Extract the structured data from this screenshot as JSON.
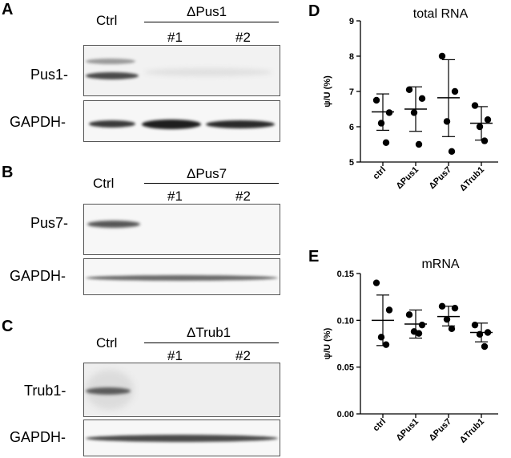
{
  "panels": {
    "A": {
      "letter": "A",
      "ctrl": "Ctrl",
      "group": "ΔPus1",
      "lane1": "#1",
      "lane2": "#2",
      "row1": "Pus1-",
      "row2": "GAPDH-"
    },
    "B": {
      "letter": "B",
      "ctrl": "Ctrl",
      "group": "ΔPus7",
      "lane1": "#1",
      "lane2": "#2",
      "row1": "Pus7-",
      "row2": "GAPDH-"
    },
    "C": {
      "letter": "C",
      "ctrl": "Ctrl",
      "group": "ΔTrub1",
      "lane1": "#1",
      "lane2": "#2",
      "row1": "Trub1-",
      "row2": "GAPDH-"
    },
    "D": {
      "letter": "D"
    },
    "E": {
      "letter": "E"
    }
  },
  "chart_data": [
    {
      "type": "scatter",
      "title": "total RNA",
      "ylabel": "ψ/U (%)",
      "categories": [
        "ctrl",
        "ΔPus1",
        "ΔPus7",
        "ΔTrub1"
      ],
      "ylim": [
        5,
        9
      ],
      "yticks": [
        5,
        6,
        7,
        8,
        9
      ],
      "tick_labels": [
        "5",
        "6",
        "7",
        "8",
        "9"
      ],
      "points": [
        [
          6.75,
          6.4,
          6.1,
          5.55
        ],
        [
          7.05,
          6.8,
          6.4,
          5.5
        ],
        [
          8.0,
          7.0,
          6.15,
          5.3
        ],
        [
          6.6,
          6.2,
          6.0,
          5.6
        ]
      ],
      "mean": [
        6.42,
        6.5,
        6.82,
        6.1
      ],
      "error_low": [
        5.9,
        5.87,
        5.72,
        5.62
      ],
      "error_high": [
        6.93,
        7.13,
        7.9,
        6.57
      ]
    },
    {
      "type": "scatter",
      "title": "mRNA",
      "ylabel": "ψ/U (%)",
      "categories": [
        "ctrl",
        "ΔPus1",
        "ΔPus7",
        "ΔTrub1"
      ],
      "ylim": [
        0,
        0.15
      ],
      "yticks": [
        0,
        0.05,
        0.1,
        0.15
      ],
      "tick_labels": [
        "0.00",
        "0.05",
        "0.10",
        "0.15"
      ],
      "points": [
        [
          0.14,
          0.111,
          0.082,
          0.074
        ],
        [
          0.106,
          0.095,
          0.088,
          0.086
        ],
        [
          0.115,
          0.113,
          0.101,
          0.091
        ],
        [
          0.095,
          0.087,
          0.085,
          0.072
        ]
      ],
      "mean": [
        0.1,
        0.096,
        0.104,
        0.087
      ],
      "error_low": [
        0.073,
        0.081,
        0.094,
        0.077
      ],
      "error_high": [
        0.127,
        0.111,
        0.115,
        0.097
      ]
    }
  ]
}
